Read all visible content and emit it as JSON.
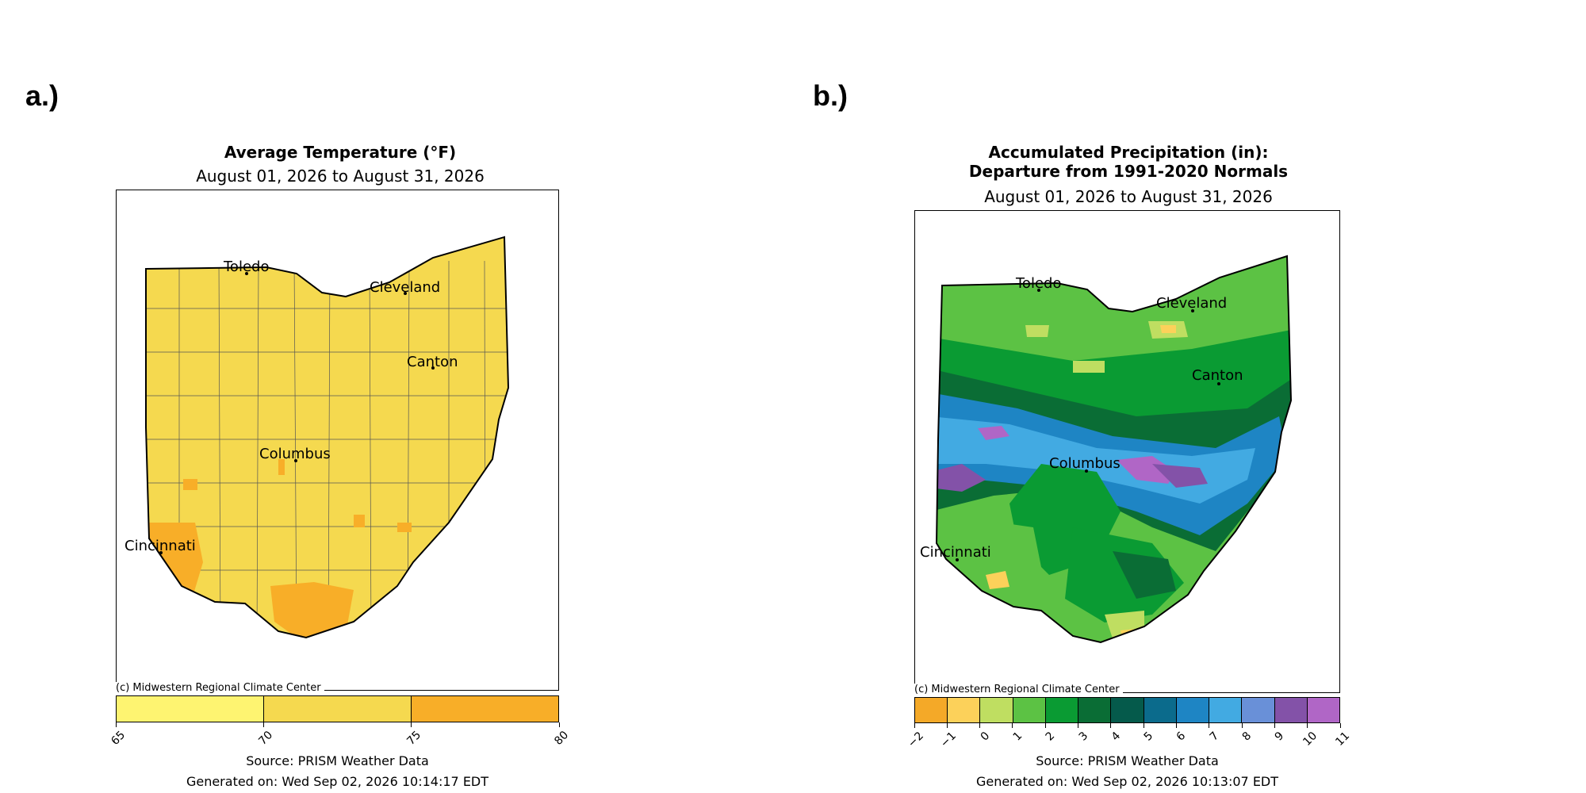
{
  "panels": [
    {
      "label": "a.)",
      "title": "Average Temperature (°F)",
      "period": "August 01, 2026 to August 31, 2026",
      "credit": "(c) Midwestern Regional Climate Center",
      "source": "Source: PRISM Weather Data",
      "generated": "Generated on: Wed Sep 02, 2026 10:14:17 EDT",
      "colorbar": {
        "ticks": [
          "65",
          "70",
          "75",
          "80"
        ],
        "colors": [
          "#fef471",
          "#f5d94f",
          "#f8ae28"
        ]
      },
      "cities": [
        "Toledo",
        "Cleveland",
        "Canton",
        "Columbus",
        "Cincinnati"
      ]
    },
    {
      "label": "b.)",
      "title_line1": "Accumulated Precipitation (in):",
      "title_line2": "Departure from 1991-2020 Normals",
      "period": "August 01, 2026 to August 31, 2026",
      "credit": "(c) Midwestern Regional Climate Center",
      "source": "Source: PRISM Weather Data",
      "generated": "Generated on: Wed Sep 02, 2026 10:13:07 EDT",
      "colorbar": {
        "ticks": [
          "−2",
          "−1",
          "0",
          "1",
          "2",
          "3",
          "4",
          "5",
          "6",
          "7",
          "8",
          "9",
          "10",
          "11"
        ],
        "colors": [
          "#f4a928",
          "#fcd15a",
          "#bfde61",
          "#5cc244",
          "#0a9b33",
          "#0a6d35",
          "#055a4b",
          "#0b6b8c",
          "#1e85c4",
          "#42aae2",
          "#6990d8",
          "#8352a8",
          "#b066c6"
        ]
      },
      "cities": [
        "Toledo",
        "Cleveland",
        "Canton",
        "Columbus",
        "Cincinnati"
      ]
    }
  ]
}
